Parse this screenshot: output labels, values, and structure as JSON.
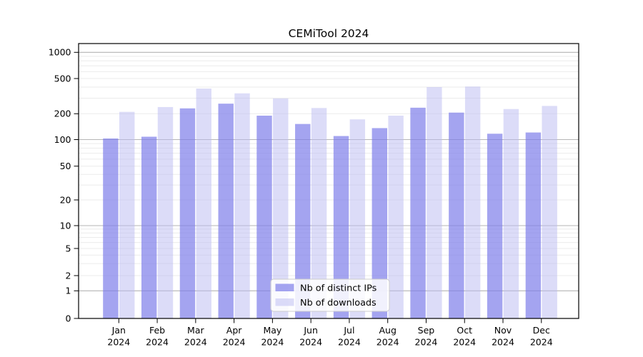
{
  "title": "CEMiTool 2024",
  "chart_data": {
    "type": "bar",
    "title": "CEMiTool 2024",
    "categories": [
      "Jan 2024",
      "Feb 2024",
      "Mar 2024",
      "Apr 2024",
      "May 2024",
      "Jun 2024",
      "Jul 2024",
      "Aug 2024",
      "Sep 2024",
      "Oct 2024",
      "Nov 2024",
      "Dec 2024"
    ],
    "x_tick_months": [
      "Jan",
      "Feb",
      "Mar",
      "Apr",
      "May",
      "Jun",
      "Jul",
      "Aug",
      "Sep",
      "Oct",
      "Nov",
      "Dec"
    ],
    "x_tick_year": "2024",
    "y_axis": {
      "scale": "symlog",
      "ticks": [
        0,
        1,
        2,
        5,
        10,
        20,
        50,
        100,
        200,
        500,
        1000
      ],
      "range": [
        0,
        1000
      ]
    },
    "grid": {
      "enabled": true,
      "orientation": "horizontal",
      "major_values": [
        1,
        10,
        100,
        1000
      ],
      "minor_values": [
        2,
        3,
        4,
        5,
        6,
        7,
        8,
        9,
        20,
        30,
        40,
        50,
        60,
        70,
        80,
        90,
        200,
        300,
        400,
        500,
        600,
        700,
        800,
        900
      ],
      "major_color": "#b5b5b5",
      "minor_color": "#ebebeb"
    },
    "series": [
      {
        "name": "Nb of distinct IPs",
        "color": "#7d7de9",
        "fill_opacity": 0.7,
        "values": [
          103,
          108,
          230,
          260,
          190,
          152,
          110,
          136,
          234,
          206,
          117,
          121
        ]
      },
      {
        "name": "Nb of downloads",
        "color": "#b9b9f1",
        "fill_opacity": 0.5,
        "values": [
          210,
          238,
          385,
          340,
          298,
          232,
          172,
          190,
          400,
          406,
          226,
          245
        ]
      }
    ],
    "legend": {
      "position": "lower center",
      "entries": [
        "Nb of distinct IPs",
        "Nb of downloads"
      ]
    }
  }
}
